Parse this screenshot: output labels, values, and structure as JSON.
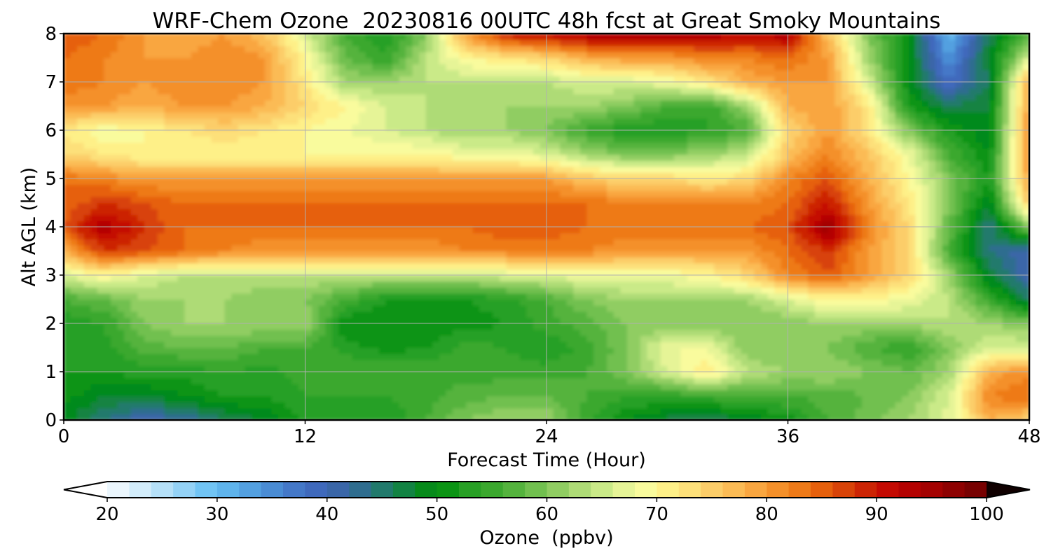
{
  "chart_data": {
    "type": "heatmap",
    "title": "WRF-Chem Ozone  20230816 00UTC 48h fcst at Great Smoky Mountains",
    "xlabel": "Forecast Time (Hour)",
    "ylabel": "Alt AGL (km)",
    "xlim": [
      0,
      48
    ],
    "ylim": [
      0,
      8
    ],
    "xticks": [
      0,
      12,
      24,
      36,
      48
    ],
    "yticks": [
      0,
      1,
      2,
      3,
      4,
      5,
      6,
      7,
      8
    ],
    "grid": true,
    "colorbar": {
      "label": "Ozone  (ppbv)",
      "min": 20,
      "max": 100,
      "step": 2,
      "ticks": [
        20,
        30,
        40,
        50,
        60,
        70,
        80,
        90,
        100
      ],
      "extend": "both",
      "orientation": "horizontal",
      "colors": [
        "#ffffff",
        "#ebf6fd",
        "#d2ecfa",
        "#b5e0f8",
        "#94d2f6",
        "#71c4f4",
        "#5fb4ec",
        "#53a0e0",
        "#4a8cd4",
        "#4478c8",
        "#3f69bc",
        "#3a66a8",
        "#2f6d8f",
        "#217a6c",
        "#128343",
        "#068a1a",
        "#0b9414",
        "#28a025",
        "#3ba82e",
        "#54b33d",
        "#71c04f",
        "#90cd62",
        "#aedb76",
        "#caea88",
        "#e6f497",
        "#f9fb9d",
        "#fef088",
        "#fde07a",
        "#fccd69",
        "#fbbb55",
        "#f9a640",
        "#f4902a",
        "#ee7a18",
        "#e6600c",
        "#d84308",
        "#cc2404",
        "#c40a02",
        "#b40201",
        "#a40201",
        "#8e0101",
        "#780101",
        "#620101",
        "#4c0101",
        "#360101",
        "#220101",
        "#110101"
      ]
    },
    "x": [
      0,
      2,
      4,
      6,
      8,
      10,
      12,
      14,
      16,
      18,
      20,
      22,
      24,
      26,
      28,
      30,
      32,
      34,
      36,
      38,
      40,
      42,
      44,
      46,
      48
    ],
    "y": [
      0,
      0.5,
      1,
      1.5,
      2,
      2.5,
      3,
      3.5,
      4,
      4.5,
      5,
      5.5,
      6,
      6.5,
      7,
      7.5,
      8
    ],
    "values": [
      [
        49,
        44,
        40,
        42,
        46,
        48,
        53,
        52,
        52,
        56,
        60,
        62,
        62,
        55,
        50,
        47,
        46,
        48,
        51,
        56,
        59,
        62,
        67,
        78,
        74
      ],
      [
        51,
        48,
        48,
        50,
        52,
        52,
        54,
        54,
        54,
        55,
        57,
        58,
        58,
        56,
        54,
        54,
        55,
        56,
        56,
        57,
        58,
        60,
        66,
        82,
        84
      ],
      [
        52,
        52,
        53,
        53,
        54,
        53,
        55,
        56,
        56,
        56,
        55,
        55,
        55,
        56,
        60,
        66,
        72,
        64,
        62,
        62,
        60,
        58,
        62,
        78,
        82
      ],
      [
        53,
        53,
        57,
        58,
        58,
        56,
        56,
        53,
        51,
        52,
        55,
        54,
        52,
        55,
        60,
        68,
        68,
        60,
        60,
        60,
        56,
        54,
        60,
        66,
        66
      ],
      [
        52,
        54,
        60,
        62,
        62,
        62,
        62,
        50,
        50,
        50,
        51,
        52,
        55,
        57,
        60,
        60,
        60,
        60,
        60,
        62,
        62,
        62,
        64,
        62,
        60
      ],
      [
        56,
        58,
        62,
        62,
        62,
        60,
        60,
        56,
        52,
        52,
        52,
        53,
        56,
        60,
        62,
        62,
        62,
        62,
        66,
        70,
        70,
        68,
        64,
        55,
        46
      ],
      [
        66,
        70,
        66,
        64,
        64,
        64,
        64,
        64,
        64,
        64,
        64,
        66,
        66,
        68,
        68,
        68,
        70,
        74,
        82,
        86,
        80,
        74,
        62,
        48,
        40
      ],
      [
        78,
        88,
        86,
        84,
        82,
        80,
        80,
        80,
        80,
        80,
        82,
        82,
        82,
        82,
        80,
        80,
        80,
        80,
        84,
        88,
        80,
        74,
        56,
        44,
        40
      ],
      [
        86,
        94,
        88,
        84,
        84,
        84,
        84,
        84,
        84,
        84,
        84,
        86,
        86,
        84,
        84,
        84,
        84,
        84,
        86,
        96,
        82,
        74,
        58,
        44,
        60
      ],
      [
        84,
        88,
        86,
        84,
        84,
        84,
        84,
        84,
        84,
        84,
        84,
        84,
        84,
        84,
        82,
        82,
        82,
        82,
        84,
        90,
        80,
        72,
        60,
        48,
        76
      ],
      [
        84,
        82,
        80,
        80,
        80,
        80,
        80,
        80,
        80,
        80,
        80,
        80,
        80,
        76,
        74,
        74,
        72,
        74,
        82,
        86,
        78,
        70,
        60,
        52,
        80
      ],
      [
        74,
        72,
        70,
        70,
        70,
        70,
        70,
        70,
        70,
        70,
        68,
        68,
        66,
        62,
        60,
        60,
        62,
        64,
        76,
        82,
        76,
        68,
        56,
        50,
        82
      ],
      [
        72,
        68,
        70,
        72,
        74,
        72,
        70,
        68,
        66,
        64,
        62,
        62,
        60,
        55,
        52,
        52,
        54,
        56,
        74,
        80,
        72,
        60,
        52,
        48,
        82
      ],
      [
        80,
        80,
        78,
        80,
        80,
        78,
        74,
        70,
        66,
        64,
        62,
        62,
        62,
        62,
        60,
        56,
        54,
        62,
        78,
        80,
        72,
        52,
        46,
        48,
        80
      ],
      [
        84,
        82,
        80,
        82,
        82,
        80,
        72,
        62,
        62,
        64,
        64,
        64,
        64,
        66,
        66,
        68,
        72,
        78,
        80,
        80,
        66,
        50,
        38,
        46,
        80
      ],
      [
        84,
        82,
        80,
        80,
        82,
        80,
        70,
        58,
        54,
        64,
        70,
        72,
        74,
        78,
        80,
        80,
        82,
        82,
        84,
        80,
        62,
        50,
        34,
        48,
        66
      ],
      [
        86,
        84,
        80,
        78,
        80,
        76,
        66,
        56,
        52,
        60,
        80,
        90,
        92,
        94,
        94,
        94,
        94,
        92,
        94,
        76,
        60,
        50,
        30,
        46,
        58
      ]
    ]
  }
}
